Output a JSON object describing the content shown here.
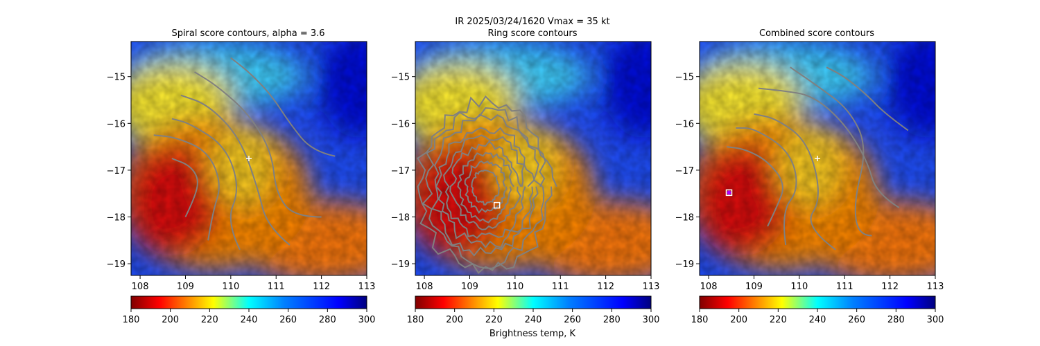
{
  "suptitle_line1": "IR  2025/03/24/1620    Vmax = 35 kt",
  "colorbar_label": "Brightness temp, K",
  "chart_data": [
    {
      "type": "heatmap",
      "title": "Spiral score contours, alpha =  3.6",
      "xlim": [
        107.8,
        113.0
      ],
      "ylim": [
        -19.25,
        -14.25
      ],
      "xticks": [
        108,
        109,
        110,
        111,
        112,
        113
      ],
      "yticks": [
        -15,
        -16,
        -17,
        -18,
        -19
      ],
      "colorbar": {
        "ticks": [
          180,
          200,
          220,
          240,
          260,
          280,
          300
        ],
        "min": 180,
        "max": 300
      },
      "contours": [
        [
          [
            109.0,
            -18.0
          ],
          [
            109.2,
            -17.6
          ],
          [
            109.3,
            -17.2
          ],
          [
            109.1,
            -16.9
          ],
          [
            108.7,
            -16.75
          ]
        ],
        [
          [
            109.5,
            -18.5
          ],
          [
            109.6,
            -17.9
          ],
          [
            109.8,
            -17.3
          ],
          [
            109.5,
            -16.6
          ],
          [
            108.8,
            -16.3
          ],
          [
            108.3,
            -16.25
          ]
        ],
        [
          [
            110.2,
            -18.7
          ],
          [
            109.9,
            -18.1
          ],
          [
            110.2,
            -17.4
          ],
          [
            109.9,
            -16.5
          ],
          [
            109.1,
            -16.0
          ],
          [
            108.7,
            -15.9
          ]
        ],
        [
          [
            111.3,
            -18.6
          ],
          [
            110.8,
            -18.2
          ],
          [
            110.6,
            -17.4
          ],
          [
            110.2,
            -16.3
          ],
          [
            109.5,
            -15.6
          ],
          [
            108.9,
            -15.4
          ]
        ],
        [
          [
            112.0,
            -18.0
          ],
          [
            111.4,
            -18.0
          ],
          [
            111.0,
            -17.5
          ],
          [
            110.9,
            -16.6
          ],
          [
            110.4,
            -15.8
          ],
          [
            109.7,
            -15.2
          ],
          [
            109.2,
            -14.9
          ]
        ],
        [
          [
            112.3,
            -16.7
          ],
          [
            111.8,
            -16.6
          ],
          [
            111.3,
            -16.0
          ],
          [
            110.9,
            -15.4
          ],
          [
            110.4,
            -14.9
          ],
          [
            110.0,
            -14.6
          ]
        ]
      ],
      "markers": [
        {
          "x": 110.4,
          "y": -16.75,
          "shape": "plus",
          "color": "#ffffff"
        }
      ]
    },
    {
      "type": "heatmap",
      "title": "Ring score contours",
      "xlim": [
        107.8,
        113.0
      ],
      "ylim": [
        -19.25,
        -14.25
      ],
      "xticks": [
        108,
        109,
        110,
        111,
        112,
        113
      ],
      "yticks": [
        -15,
        -16,
        -17,
        -18,
        -19
      ],
      "colorbar": {
        "ticks": [
          180,
          200,
          220,
          240,
          260,
          280,
          300
        ],
        "min": 180,
        "max": 300
      },
      "ring_contour_region": {
        "cx": 109.35,
        "cy": -17.35,
        "rx": 1.45,
        "ry": 1.8
      },
      "markers": [
        {
          "x": 109.6,
          "y": -17.75,
          "shape": "square",
          "color": "#ffffff"
        }
      ]
    },
    {
      "type": "heatmap",
      "title": "Combined score contours",
      "xlim": [
        107.8,
        113.0
      ],
      "ylim": [
        -19.25,
        -14.25
      ],
      "xticks": [
        108,
        109,
        110,
        111,
        112,
        113
      ],
      "yticks": [
        -15,
        -16,
        -17,
        -18,
        -19
      ],
      "colorbar": {
        "ticks": [
          180,
          200,
          220,
          240,
          260,
          280,
          300
        ],
        "min": 180,
        "max": 300
      },
      "contours": [
        [
          [
            109.3,
            -18.2
          ],
          [
            109.5,
            -17.8
          ],
          [
            109.7,
            -17.3
          ],
          [
            109.3,
            -16.8
          ],
          [
            108.8,
            -16.55
          ],
          [
            108.4,
            -16.5
          ]
        ],
        [
          [
            109.7,
            -18.6
          ],
          [
            109.6,
            -17.9
          ],
          [
            110.0,
            -17.4
          ],
          [
            109.8,
            -16.6
          ],
          [
            109.0,
            -16.1
          ],
          [
            108.6,
            -16.1
          ]
        ],
        [
          [
            110.8,
            -18.7
          ],
          [
            110.1,
            -18.2
          ],
          [
            110.5,
            -17.6
          ],
          [
            110.2,
            -16.4
          ],
          [
            109.5,
            -15.9
          ],
          [
            109.0,
            -15.8
          ]
        ],
        [
          [
            112.2,
            -17.8
          ],
          [
            111.7,
            -17.5
          ],
          [
            111.5,
            -16.8
          ],
          [
            111.0,
            -16.0
          ],
          [
            110.3,
            -15.4
          ],
          [
            109.6,
            -15.3
          ],
          [
            109.1,
            -15.25
          ]
        ],
        [
          [
            111.6,
            -18.4
          ],
          [
            111.3,
            -18.4
          ],
          [
            111.2,
            -17.7
          ],
          [
            111.5,
            -16.5
          ],
          [
            111.1,
            -15.7
          ],
          [
            110.4,
            -15.2
          ],
          [
            109.8,
            -14.8
          ]
        ],
        [
          [
            112.4,
            -16.15
          ],
          [
            111.9,
            -15.8
          ],
          [
            111.5,
            -15.4
          ],
          [
            111.0,
            -15.0
          ],
          [
            110.6,
            -14.8
          ]
        ]
      ],
      "markers": [
        {
          "x": 110.4,
          "y": -16.75,
          "shape": "plus",
          "color": "#ffffff"
        },
        {
          "x": 108.45,
          "y": -17.48,
          "shape": "square",
          "color": "#ffffff"
        },
        {
          "x": 108.45,
          "y": -17.48,
          "shape": "circle",
          "color": "#aa00ff"
        }
      ]
    }
  ]
}
